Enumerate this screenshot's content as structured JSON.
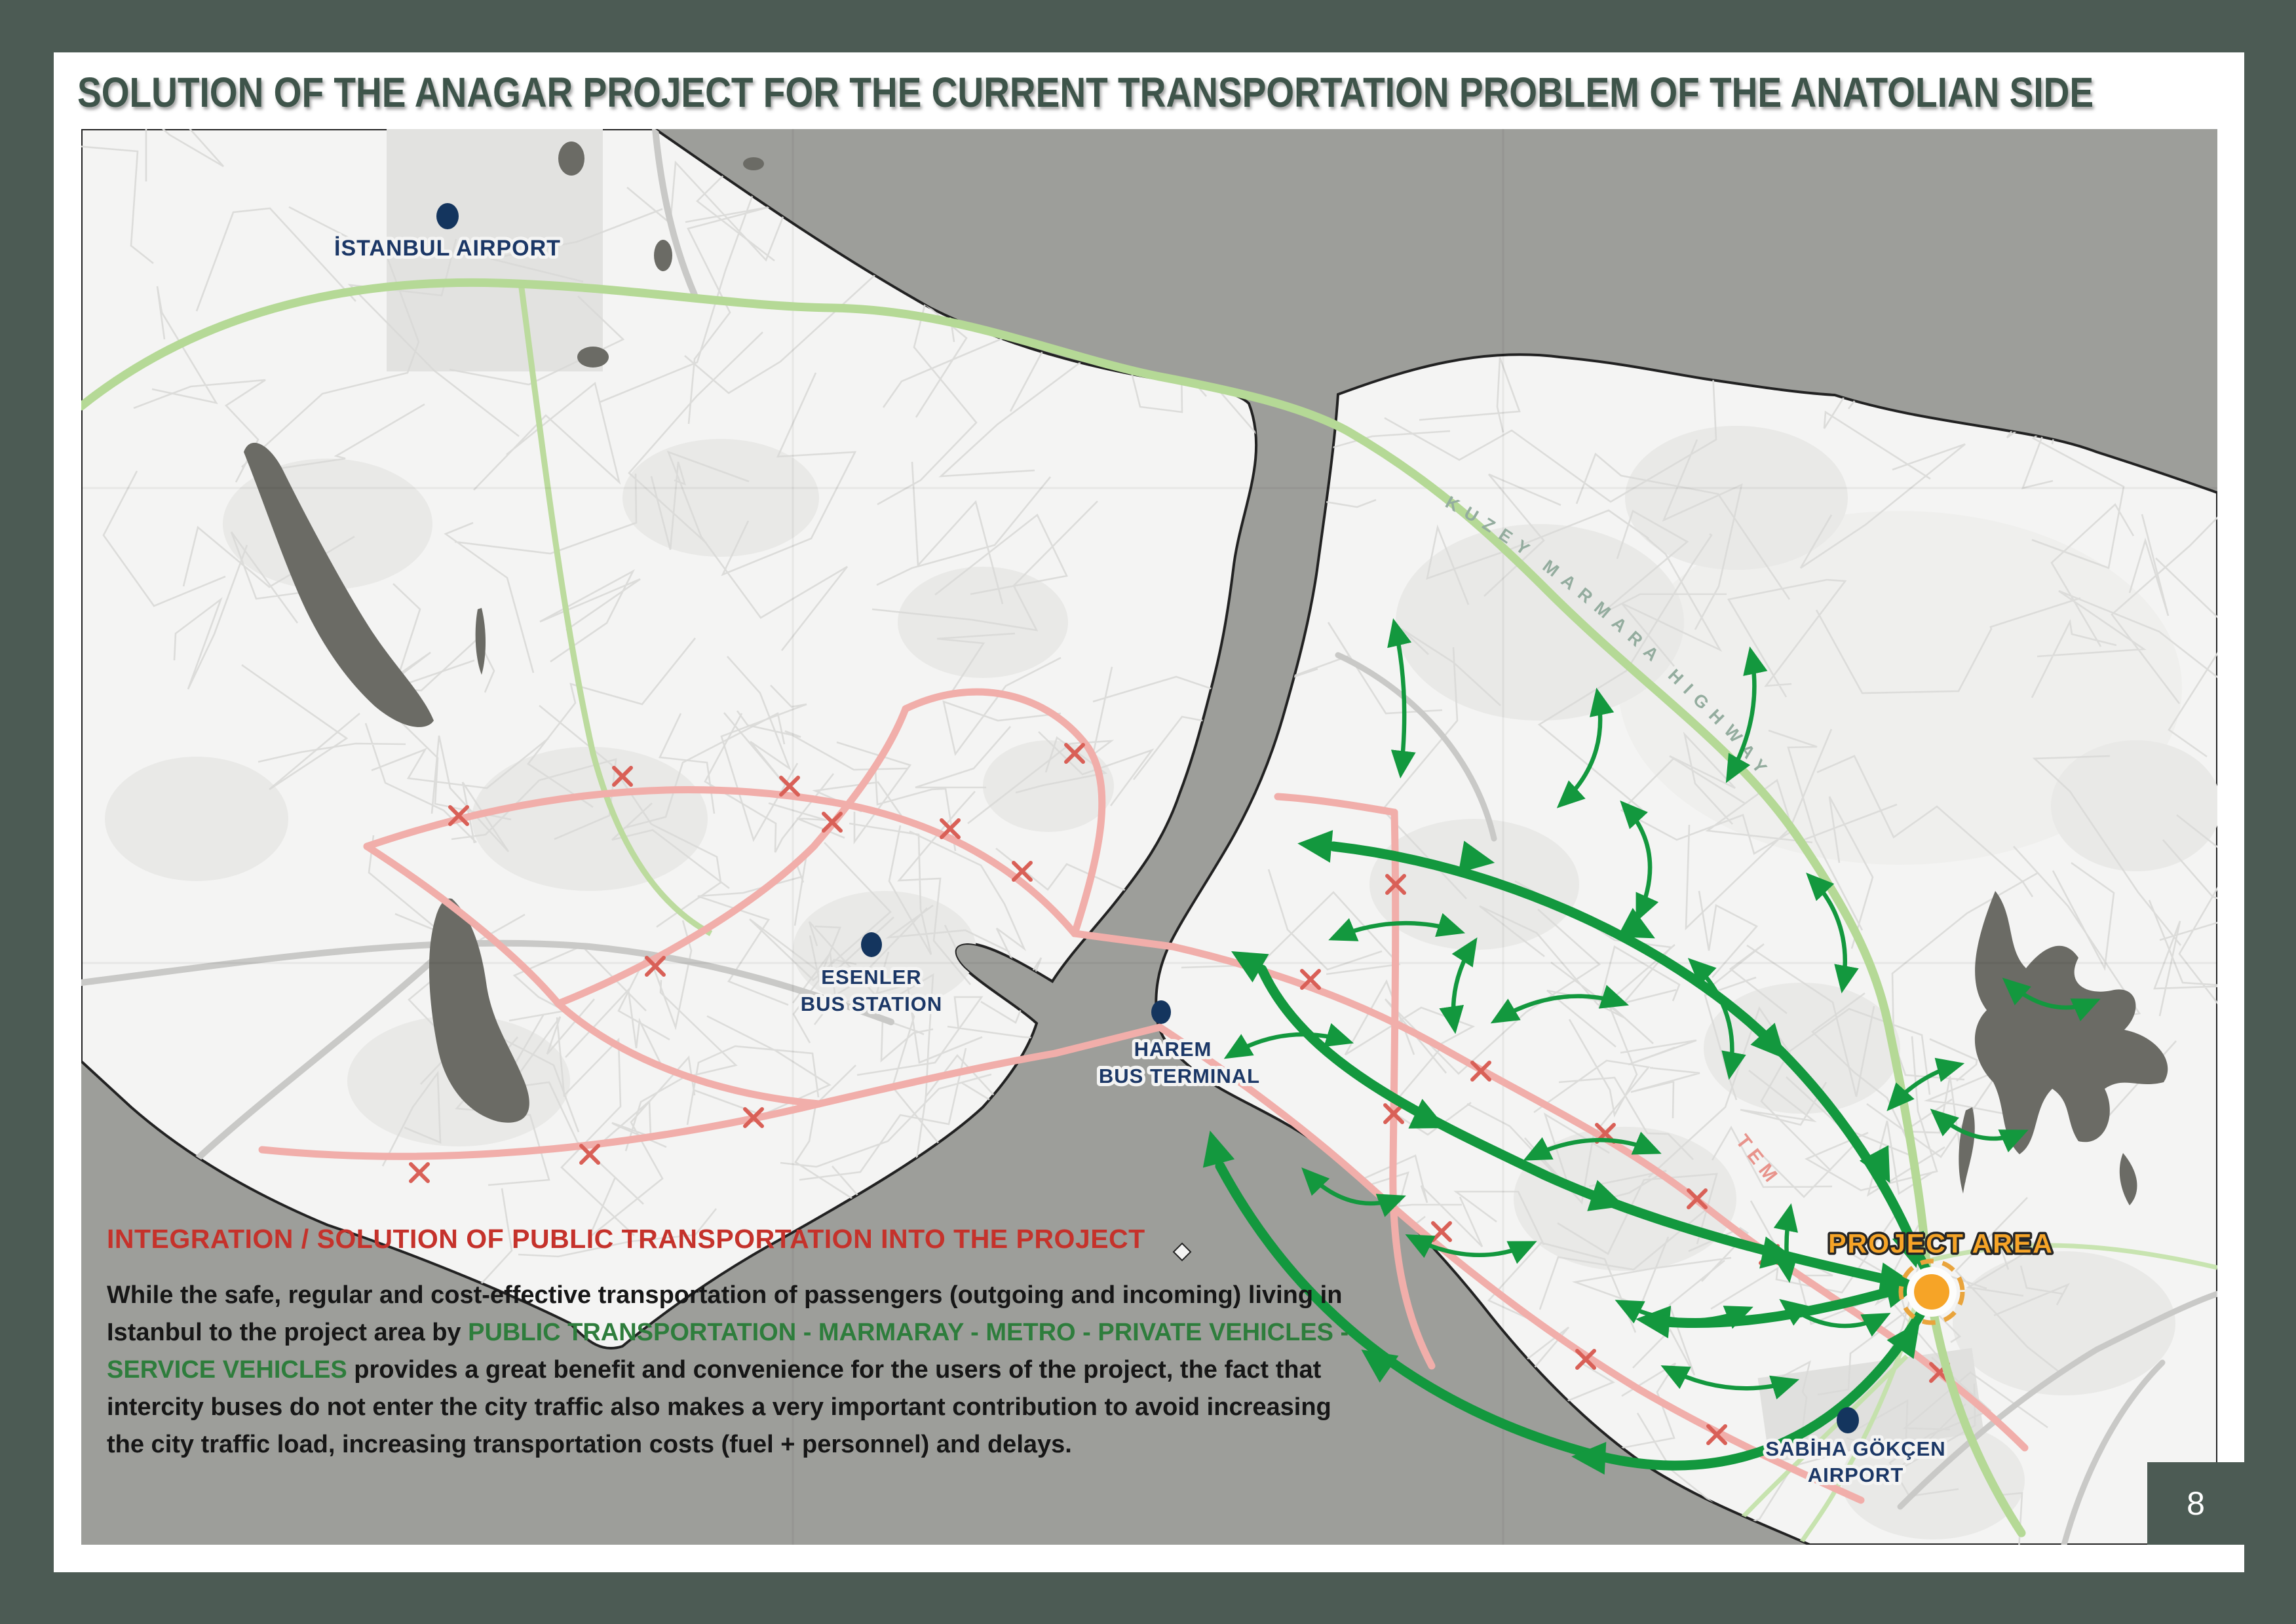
{
  "title": "SOLUTION OF THE ANAGAR PROJECT FOR THE CURRENT TRANSPORTATION PROBLEM OF THE ANATOLIAN SIDE",
  "map": {
    "labels": {
      "istanbul_airport": "İSTANBUL AIRPORT",
      "esenler_line1": "ESENLER",
      "esenler_line2": "BUS STATION",
      "harem_line1": "HAREM",
      "harem_line2": "BUS TERMINAL",
      "sabiha_line1": "SABİHA GÖKÇEN",
      "sabiha_line2": "AIRPORT",
      "project_area": "PROJECT AREA",
      "kuzey_marmara_highway": "KUZEY MARMARA HIGHWAY",
      "tem": "TEM"
    },
    "colors": {
      "frame": "#4C5B54",
      "sea": "#9D9E9A",
      "land": "#F4F4F3",
      "coastline": "#222222",
      "reservoir": "#6B6B65",
      "highway_green": "#B5D996",
      "road_pink": "#F1AEAA",
      "road_x_red": "#D96057",
      "flow_arrow_green": "#13983E",
      "marker_navy": "#14355E",
      "project_orange": "#F6A427"
    }
  },
  "infobox": {
    "heading": "INTEGRATION / SOLUTION OF PUBLIC TRANSPORTATION INTO THE PROJECT",
    "body_before": "While the safe, regular and cost-effective transportation of passengers (outgoing and incoming) living in Istanbul to the project area by ",
    "body_green": "PUBLIC TRANSPORTATION - MARMARAY - METRO - PRIVATE VEHICLES - SERVICE VEHICLES",
    "body_after": " provides a great benefit and convenience for the users of the project, the fact that intercity buses do not enter the city traffic also makes a very important contribution to avoid increasing the city traffic load, increasing transportation costs (fuel + personnel) and delays."
  },
  "footer": {
    "page_number": "8"
  }
}
